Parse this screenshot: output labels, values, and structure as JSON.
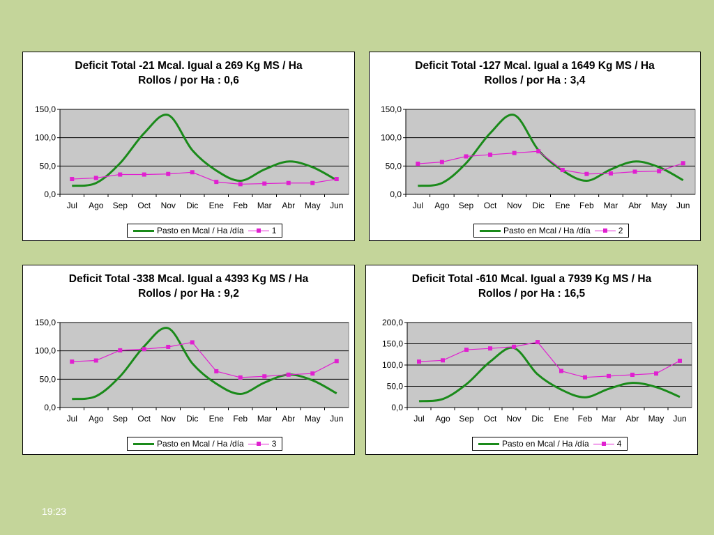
{
  "slide_time": "19:23",
  "months": [
    "Jul",
    "Ago",
    "Sep",
    "Oct",
    "Nov",
    "Dic",
    "Ene",
    "Feb",
    "Mar",
    "Abr",
    "May",
    "Jun"
  ],
  "legend_green": "Pasto en Mcal / Ha /día",
  "colors": {
    "pasto": "#1a8a1a",
    "series": "#e020d0",
    "plot_bg": "#c8c8c8"
  },
  "chart_data": [
    {
      "type": "line",
      "title_line1": "Deficit Total -21 Mcal. Igual a 269 Kg MS / Ha",
      "title_line2": "Rollos / por Ha : 0,6",
      "x": [
        "Jul",
        "Ago",
        "Sep",
        "Oct",
        "Nov",
        "Dic",
        "Ene",
        "Feb",
        "Mar",
        "Abr",
        "May",
        "Jun"
      ],
      "ylim": [
        0,
        150
      ],
      "yticks": [
        0,
        50,
        100,
        150
      ],
      "ytick_labels": [
        "0,0",
        "50,0",
        "100,0",
        "150,0"
      ],
      "grid": true,
      "legend_position": "bottom",
      "series": [
        {
          "name": "Pasto en Mcal / Ha /día",
          "values": [
            15,
            20,
            55,
            108,
            140,
            78,
            42,
            24,
            44,
            58,
            48,
            25
          ]
        },
        {
          "name": "1",
          "values": [
            27,
            29,
            35,
            35,
            36,
            39,
            22,
            18,
            19,
            20,
            20,
            27
          ]
        }
      ]
    },
    {
      "type": "line",
      "title_line1": "Deficit Total -127 Mcal. Igual a 1649 Kg MS / Ha",
      "title_line2": "Rollos / por Ha : 3,4",
      "x": [
        "Jul",
        "Ago",
        "Sep",
        "Oct",
        "Nov",
        "Dic",
        "Ene",
        "Feb",
        "Mar",
        "Abr",
        "May",
        "Jun"
      ],
      "ylim": [
        0,
        150
      ],
      "yticks": [
        0,
        50,
        100,
        150
      ],
      "ytick_labels": [
        "0,0",
        "50,0",
        "100,0",
        "150,0"
      ],
      "grid": true,
      "legend_position": "bottom",
      "series": [
        {
          "name": "Pasto en Mcal / Ha /día",
          "values": [
            15,
            20,
            55,
            108,
            140,
            78,
            42,
            24,
            44,
            58,
            48,
            25
          ]
        },
        {
          "name": "2",
          "values": [
            54,
            57,
            67,
            70,
            73,
            76,
            43,
            36,
            37,
            40,
            41,
            55
          ]
        }
      ]
    },
    {
      "type": "line",
      "title_line1": "Deficit Total -338 Mcal. Igual a 4393 Kg MS / Ha",
      "title_line2": "Rollos / por Ha : 9,2",
      "x": [
        "Jul",
        "Ago",
        "Sep",
        "Oct",
        "Nov",
        "Dic",
        "Ene",
        "Feb",
        "Mar",
        "Abr",
        "May",
        "Jun"
      ],
      "ylim": [
        0,
        150
      ],
      "yticks": [
        0,
        50,
        100,
        150
      ],
      "ytick_labels": [
        "0,0",
        "50,0",
        "100,0",
        "150,0"
      ],
      "grid": true,
      "legend_position": "bottom",
      "series": [
        {
          "name": "Pasto en Mcal / Ha /día",
          "values": [
            15,
            20,
            55,
            108,
            140,
            78,
            42,
            24,
            44,
            58,
            48,
            25
          ]
        },
        {
          "name": "3",
          "values": [
            81,
            83,
            101,
            103,
            107,
            115,
            64,
            53,
            55,
            58,
            60,
            82
          ]
        }
      ]
    },
    {
      "type": "line",
      "title_line1": "Deficit Total -610 Mcal. Igual a 7939 Kg MS / Ha",
      "title_line2": "Rollos / por Ha : 16,5",
      "x": [
        "Jul",
        "Ago",
        "Sep",
        "Oct",
        "Nov",
        "Dic",
        "Ene",
        "Feb",
        "Mar",
        "Abr",
        "May",
        "Jun"
      ],
      "ylim": [
        0,
        200
      ],
      "yticks": [
        0,
        50,
        100,
        150,
        200
      ],
      "ytick_labels": [
        "0,0",
        "50,0",
        "100,0",
        "150,0",
        "200,0"
      ],
      "grid": true,
      "legend_position": "bottom",
      "series": [
        {
          "name": "Pasto en Mcal / Ha /día",
          "values": [
            15,
            20,
            55,
            108,
            140,
            78,
            42,
            24,
            44,
            58,
            48,
            25
          ]
        },
        {
          "name": "4",
          "values": [
            108,
            111,
            136,
            139,
            143,
            154,
            86,
            71,
            74,
            77,
            80,
            110
          ]
        }
      ]
    }
  ]
}
